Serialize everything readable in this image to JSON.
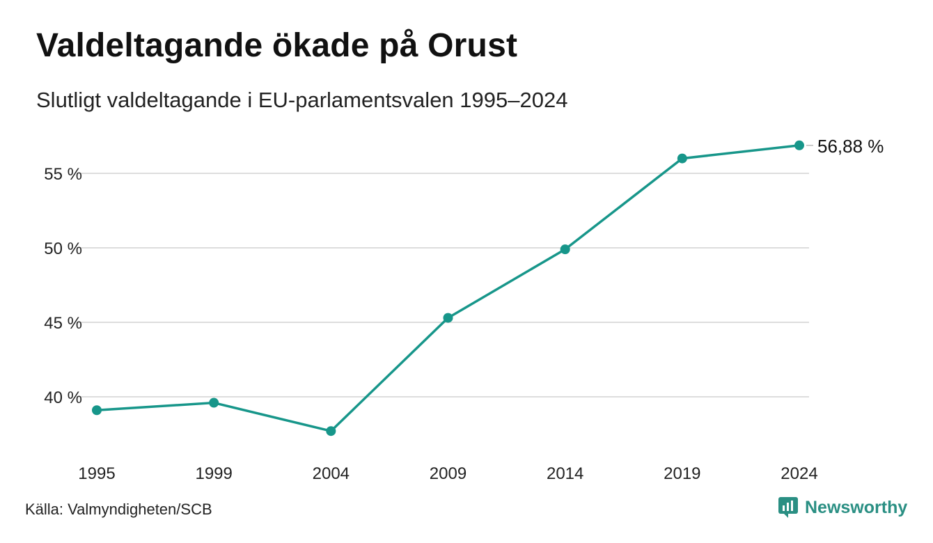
{
  "header": {
    "title": "Valdeltagande ökade på Orust",
    "subtitle": "Slutligt valdeltagande i EU-parlamentsvalen 1995–2024"
  },
  "footer": {
    "source": "Källa: Valmyndigheten/SCB",
    "brand": "Newsworthy",
    "brand_icon": "newsworthy-logo-icon"
  },
  "colors": {
    "line": "#17968a",
    "grid": "#dddddd",
    "brand": "#2a8f83"
  },
  "chart_data": {
    "type": "line",
    "title": "Valdeltagande ökade på Orust",
    "subtitle": "Slutligt valdeltagande i EU-parlamentsvalen 1995–2024",
    "categories": [
      "1995",
      "1999",
      "2004",
      "2009",
      "2014",
      "2019",
      "2024"
    ],
    "series": [
      {
        "values": [
          39.1,
          39.6,
          37.7,
          45.3,
          49.9,
          56.0,
          56.88
        ]
      }
    ],
    "y_ticks": [
      40,
      45,
      50,
      55
    ],
    "y_tick_labels": [
      "40 %",
      "45 %",
      "50 %",
      "55 %"
    ],
    "ylim": [
      37.2,
      57.4
    ],
    "end_label": "56,88 %",
    "grid": true,
    "legend": "none"
  }
}
